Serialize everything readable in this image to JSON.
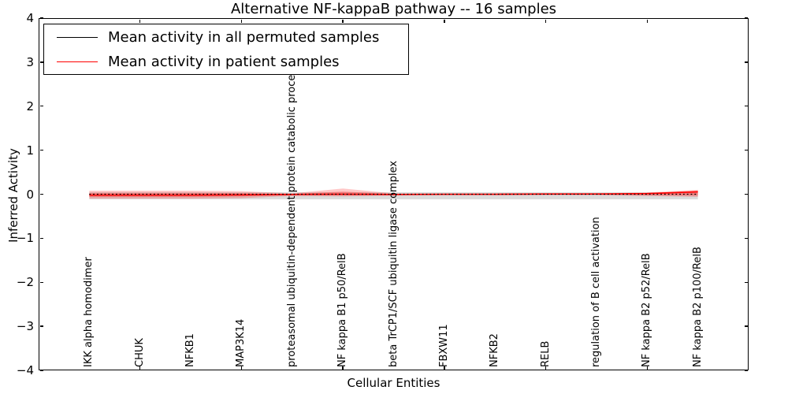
{
  "title": "Alternative NF-kappaB pathway -- 16 samples",
  "axes": {
    "ylabel": "Inferred Activity",
    "xlabel": "Cellular Entities",
    "ytick_labels": [
      "4",
      "3",
      "2",
      "1",
      "0",
      "−1",
      "−2",
      "−3",
      "−4"
    ]
  },
  "legend": {
    "items": [
      {
        "label": "Mean activity in all permuted samples",
        "color": "#000000"
      },
      {
        "label": "Mean activity in patient samples",
        "color": "#ff0000"
      }
    ]
  },
  "chart_data": {
    "type": "line",
    "title": "Alternative NF-kappaB pathway -- 16 samples",
    "xlabel": "Cellular Entities",
    "ylabel": "Inferred Activity",
    "ylim": [
      -4,
      4
    ],
    "xlim": [
      -1,
      13
    ],
    "yticks": [
      4,
      3,
      2,
      1,
      0,
      -1,
      -2,
      -3,
      -4
    ],
    "xticks_positions": [
      1,
      3,
      5,
      7,
      9,
      11
    ],
    "legend_position": "upper left",
    "grid": false,
    "categories": [
      "IKK alpha homodimer",
      "CHUK",
      "NFKB1",
      "MAP3K14",
      "proteasomal ubiquitin-dependent protein catabolic process",
      "NF kappa B1 p50/RelB",
      "beta TrCP1/SCF ubiquitin ligase complex",
      "FBXW11",
      "NFKB2",
      "RELB",
      "regulation of B cell activation",
      "NF kappa B2 p52/RelB",
      "NF kappa B2 p100/RelB"
    ],
    "series": [
      {
        "name": "Mean activity in all permuted samples",
        "color": "#000000",
        "style": "dotted",
        "width": 1.3,
        "values": [
          0,
          0,
          0,
          0,
          0,
          0,
          0,
          0,
          0,
          0,
          0,
          0,
          0
        ]
      },
      {
        "name": "Mean activity in patient samples",
        "color": "#ff0000",
        "style": "solid",
        "width": 1.6,
        "values": [
          -0.02,
          -0.02,
          -0.02,
          -0.015,
          -0.005,
          0,
          -0.005,
          0,
          0,
          0.005,
          0.005,
          0.015,
          0.055
        ]
      }
    ],
    "bands": [
      {
        "name": "permuted-samples-band",
        "color": "#999999",
        "opacity": 0.35,
        "upper": [
          0.045,
          0.045,
          0.045,
          0.045,
          0.045,
          0.045,
          0.045,
          0.045,
          0.045,
          0.045,
          0.045,
          0.045,
          0.045
        ],
        "lower": [
          -0.115,
          -0.115,
          -0.115,
          -0.115,
          -0.115,
          -0.115,
          -0.115,
          -0.115,
          -0.115,
          -0.115,
          -0.115,
          -0.115,
          -0.115
        ]
      },
      {
        "name": "patient-samples-band-outer",
        "color": "#ff0000",
        "opacity": 0.22,
        "upper": [
          0.08,
          0.08,
          0.08,
          0.07,
          0.02,
          0.13,
          0.02,
          0.015,
          0.015,
          0.015,
          0.02,
          0.04,
          0.1
        ],
        "lower": [
          -0.1,
          -0.1,
          -0.1,
          -0.09,
          -0.04,
          -0.05,
          -0.03,
          -0.025,
          -0.025,
          -0.02,
          -0.02,
          -0.04,
          -0.06
        ]
      },
      {
        "name": "patient-samples-band-inner",
        "color": "#ff0000",
        "opacity": 0.28,
        "upper": [
          0.03,
          0.03,
          0.03,
          0.025,
          0.005,
          0.06,
          0.005,
          0.005,
          0.005,
          0.01,
          0.01,
          0.025,
          0.08
        ],
        "lower": [
          -0.06,
          -0.06,
          -0.06,
          -0.05,
          -0.015,
          -0.02,
          -0.015,
          -0.01,
          -0.01,
          -0.005,
          -0.005,
          -0.02,
          -0.03
        ]
      }
    ]
  }
}
